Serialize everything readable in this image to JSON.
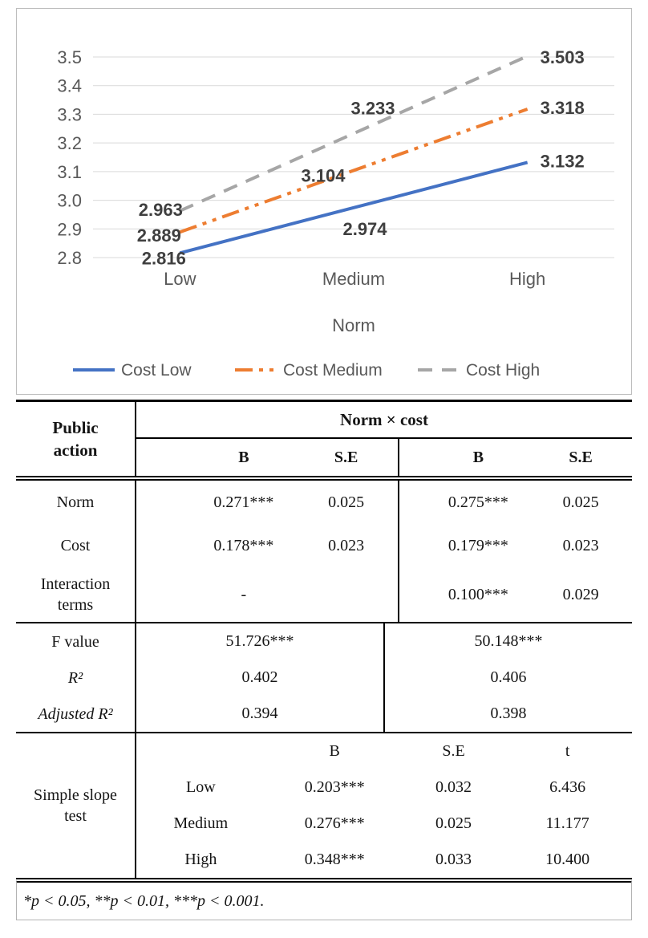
{
  "chart_data": {
    "type": "line",
    "title": "",
    "categories": [
      "Low",
      "Medium",
      "High"
    ],
    "x_axis_title": "Norm",
    "y_tick_labels": [
      "3.5",
      "3.4",
      "3.3",
      "3.2",
      "3.1",
      "3.0",
      "2.9",
      "2.8"
    ],
    "ylim": [
      2.8,
      3.5
    ],
    "grid": true,
    "legend_position": "bottom",
    "series": [
      {
        "name": "Cost Low",
        "color": "#4472C4",
        "dash": "solid",
        "values": [
          2.816,
          2.974,
          3.132
        ]
      },
      {
        "name": "Cost Medium",
        "color": "#ED7D31",
        "dash": "dashdotdot",
        "values": [
          2.889,
          3.104,
          3.318
        ]
      },
      {
        "name": "Cost High",
        "color": "#A6A6A6",
        "dash": "dash",
        "values": [
          2.963,
          3.233,
          3.503
        ]
      }
    ],
    "point_labels": [
      [
        "2.816",
        "2.974",
        "3.132"
      ],
      [
        "2.889",
        "3.104",
        "3.318"
      ],
      [
        "2.963",
        "3.233",
        "3.503"
      ]
    ]
  },
  "table": {
    "corner_header": "Public action",
    "span_header": "Norm × cost",
    "sub_headers": [
      "B",
      "S.E",
      "B",
      "S.E"
    ],
    "coef_rows": [
      {
        "label": "Norm",
        "values": [
          "0.271***",
          "0.025",
          "0.275***",
          "0.025"
        ]
      },
      {
        "label": "Cost",
        "values": [
          "0.178***",
          "0.023",
          "0.179***",
          "0.023"
        ]
      },
      {
        "label": "Interaction terms",
        "values": [
          "-",
          "",
          "0.100***",
          "0.029"
        ]
      }
    ],
    "fit_rows": [
      {
        "label": "F value",
        "model1": "51.726***",
        "model2": "50.148***"
      },
      {
        "label": "R²",
        "model1": "0.402",
        "model2": "0.406"
      },
      {
        "label": "Adjusted R²",
        "model1": "0.394",
        "model2": "0.398"
      }
    ],
    "slope_section": {
      "label": "Simple slope test",
      "headers": [
        "B",
        "S.E",
        "t"
      ],
      "rows": [
        {
          "level": "Low",
          "B": "0.203***",
          "SE": "0.032",
          "t": "6.436"
        },
        {
          "level": "Medium",
          "B": "0.276***",
          "SE": "0.025",
          "t": "11.177"
        },
        {
          "level": "High",
          "B": "0.348***",
          "SE": "0.033",
          "t": "10.400"
        }
      ]
    },
    "footnote": "*p < 0.05, **p < 0.01, ***p < 0.001."
  }
}
